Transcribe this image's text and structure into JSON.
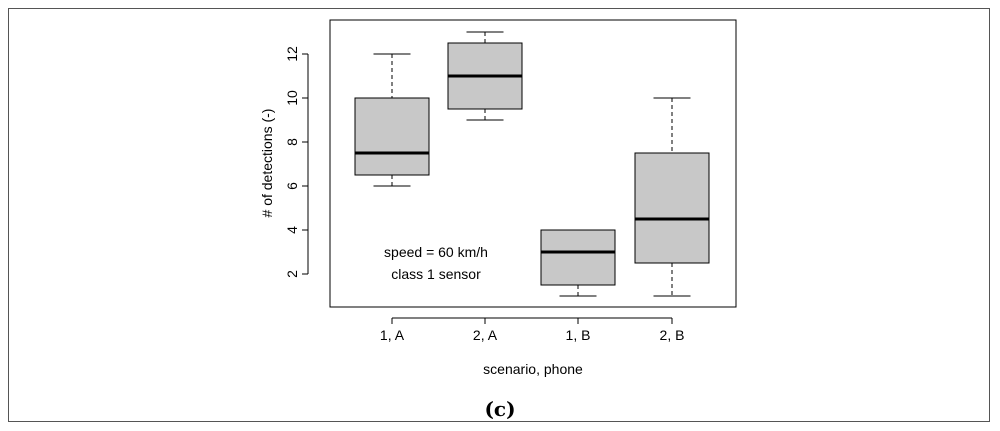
{
  "panel_label": "(c)",
  "chart_data": {
    "type": "boxplot",
    "xlabel": "scenario, phone",
    "ylabel": "# of detections (-)",
    "categories": [
      "1, A",
      "2, A",
      "1, B",
      "2, B"
    ],
    "boxes": [
      {
        "category": "1, A",
        "min": 6,
        "q1": 6.5,
        "median": 7.5,
        "q3": 10,
        "max": 12
      },
      {
        "category": "2, A",
        "min": 9,
        "q1": 9.5,
        "median": 11,
        "q3": 12.5,
        "max": 13
      },
      {
        "category": "1, B",
        "min": 1,
        "q1": 1.5,
        "median": 3,
        "q3": 4,
        "max": 4
      },
      {
        "category": "2, B",
        "min": 1,
        "q1": 2.5,
        "median": 4.5,
        "q3": 7.5,
        "max": 10
      }
    ],
    "ylim": [
      0.5,
      13.3
    ],
    "yticks": [
      2,
      4,
      6,
      8,
      10,
      12
    ],
    "annotations": [
      "speed = 60 km/h",
      "class 1 sensor"
    ],
    "box_fill": "#c8c8c8",
    "grid": false
  }
}
